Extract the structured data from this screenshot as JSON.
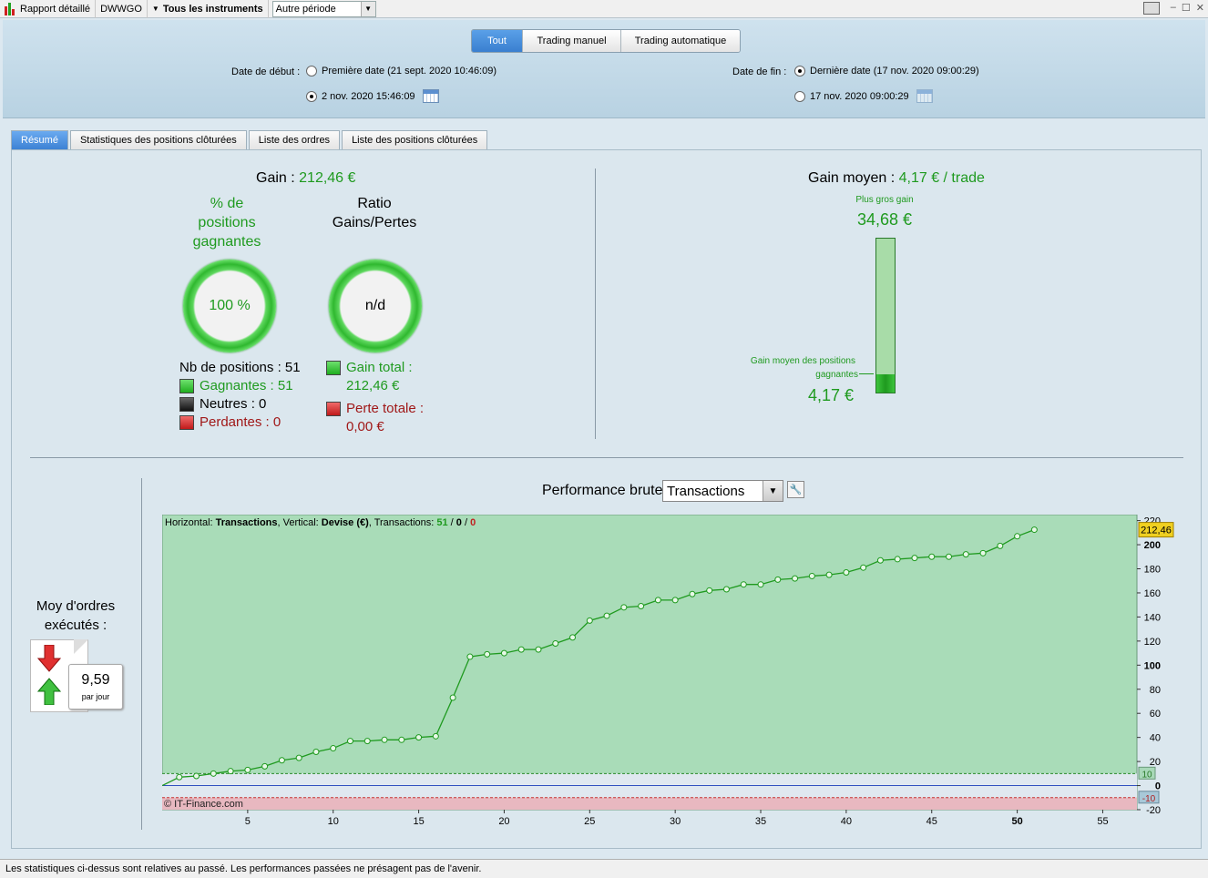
{
  "toolbar": {
    "report": "Rapport détaillé",
    "account": "DWWGO",
    "instruments": "Tous les instruments",
    "period": "Autre période"
  },
  "header": {
    "segments": [
      "Tout",
      "Trading manuel",
      "Trading automatique"
    ],
    "start_label": "Date de début :",
    "start_first": "Première date (21 sept. 2020 10:46:09)",
    "start_custom": "2 nov. 2020 15:46:09",
    "end_label": "Date de fin :",
    "end_last": "Dernière date (17 nov. 2020 09:00:29)",
    "end_custom": "17 nov. 2020 09:00:29"
  },
  "tabs": [
    "Résumé",
    "Statistiques des positions clôturées",
    "Liste des ordres",
    "Liste des positions clôturées"
  ],
  "summary": {
    "gain_label": "Gain",
    "gain_value": "212,46 €",
    "pct_title": "% de positions gagnantes",
    "pct_value": "100 %",
    "ratio_title": "Ratio Gains/Pertes",
    "ratio_value": "n/d",
    "nb_positions": "Nb de positions : 51",
    "winners": "Gagnantes : 51",
    "neutral": "Neutres : 0",
    "losers": "Perdantes : 0",
    "gain_total_label": "Gain total :",
    "gain_total_value": "212,46 €",
    "loss_total_label": "Perte totale :",
    "loss_total_value": "0,00 €",
    "avg_gain_label": "Gain moyen :",
    "avg_gain_value": "4,17 € / trade",
    "biggest_label": "Plus gros gain",
    "biggest_value": "34,68 €",
    "avg_win_label_1": "Gain moyen des positions",
    "avg_win_label_2": "gagnantes",
    "avg_win_value": "4,17 €",
    "avg_win_fraction": 0.1202,
    "orders_title_1": "Moy d'ordres",
    "orders_title_2": "exécutés :",
    "orders_value": "9,59",
    "orders_unit": "par jour"
  },
  "perf": {
    "title": "Performance brute",
    "select": "Transactions"
  },
  "chart_data": {
    "type": "line",
    "info_prefix": "Horizontal: ",
    "info_h": "Transactions",
    "info_mid": ", Vertical: ",
    "info_v": "Devise (€)",
    "info_tx": ", Transactions: ",
    "info_w": "51",
    "info_n": "0",
    "info_l": "0",
    "copyright": "© IT-Finance.com",
    "last_value_label": "212,46",
    "band_upper_label": "10",
    "band_lower_label": "-10",
    "xlim": [
      0,
      57
    ],
    "ylim": [
      -20,
      225
    ],
    "xticks": [
      5,
      10,
      15,
      20,
      25,
      30,
      35,
      40,
      45,
      50,
      55
    ],
    "yticks": [
      -20,
      0,
      20,
      40,
      60,
      80,
      100,
      120,
      140,
      160,
      180,
      200,
      220
    ],
    "x": [
      0,
      1,
      2,
      3,
      4,
      5,
      6,
      7,
      8,
      9,
      10,
      11,
      12,
      13,
      14,
      15,
      16,
      17,
      18,
      19,
      20,
      21,
      22,
      23,
      24,
      25,
      26,
      27,
      28,
      29,
      30,
      31,
      32,
      33,
      34,
      35,
      36,
      37,
      38,
      39,
      40,
      41,
      42,
      43,
      44,
      45,
      46,
      47,
      48,
      49,
      50,
      51
    ],
    "y": [
      0,
      7,
      8,
      10,
      12,
      13,
      16,
      21,
      23,
      28,
      31,
      37,
      37,
      38,
      38,
      40,
      41,
      73,
      107,
      109,
      110,
      113,
      113,
      118,
      123,
      137,
      141,
      148,
      149,
      154,
      154,
      159,
      162,
      163,
      167,
      167,
      171,
      172,
      174,
      175,
      177,
      181,
      187,
      188,
      189,
      190,
      190,
      192,
      193,
      199,
      207,
      212.46
    ],
    "colors": {
      "line": "#1f9a1f",
      "bg": "#a9dcb8",
      "band_bg": "#e0e8f0",
      "loss_bg": "#e8b8c0",
      "zero": "#3050c0",
      "upper": "#2a8a2a",
      "lower": "#c83030"
    }
  },
  "status": "Les statistiques ci-dessus sont relatives au passé. Les performances passées ne présagent pas de l'avenir."
}
